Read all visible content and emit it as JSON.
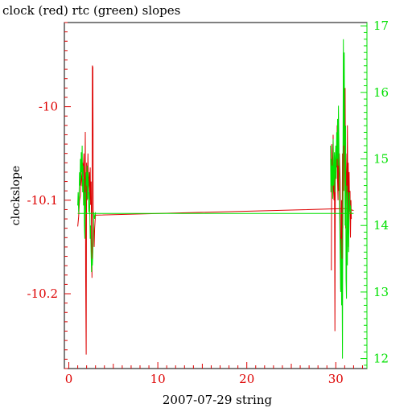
{
  "chart_data": {
    "type": "line",
    "title": "clock (red) rtc (green) slopes",
    "xlabel": "2007-07-29 string",
    "ylabel": "clockslope",
    "xlim": [
      -0.5,
      33.5
    ],
    "y_left": {
      "lim": [
        -10.28,
        -9.91
      ],
      "ticks": [
        -10.2,
        -10.1,
        -10
      ],
      "tick_labels": [
        "-10.2",
        "-10.1",
        "-10"
      ],
      "color": "#dd0000"
    },
    "y_right": {
      "lim": [
        11.85,
        17.05
      ],
      "ticks": [
        12,
        13,
        14,
        15,
        16,
        17
      ],
      "tick_labels": [
        "12",
        "13",
        "14",
        "15",
        "16",
        "17"
      ],
      "color": "#00e000"
    },
    "x_ticks": [
      0,
      10,
      20,
      30
    ],
    "x_tick_labels": [
      "0",
      "10",
      "20",
      "30"
    ],
    "series": [
      {
        "color": "#dd0000",
        "axis": "left",
        "segments": [
          [
            [
              1.0,
              -10.128
            ],
            [
              1.1,
              -10.118
            ],
            [
              1.2,
              -10.1
            ],
            [
              1.3,
              -10.095
            ],
            [
              1.4,
              -10.07
            ],
            [
              1.5,
              -10.085
            ],
            [
              1.55,
              -10.06
            ],
            [
              1.6,
              -10.075
            ],
            [
              1.7,
              -10.05
            ],
            [
              1.75,
              -10.1
            ],
            [
              1.8,
              -10.11
            ],
            [
              1.85,
              -10.027
            ],
            [
              1.9,
              -10.185
            ],
            [
              1.95,
              -10.265
            ],
            [
              2.0,
              -10.06
            ],
            [
              2.05,
              -10.1
            ],
            [
              2.1,
              -10.08
            ],
            [
              2.15,
              -10.05
            ],
            [
              2.2,
              -10.09
            ],
            [
              2.3,
              -10.07
            ],
            [
              2.35,
              -10.1
            ],
            [
              2.4,
              -10.065
            ],
            [
              2.45,
              -10.105
            ],
            [
              2.5,
              -10.08
            ],
            [
              2.55,
              -10.125
            ],
            [
              2.6,
              -10.183
            ],
            [
              2.65,
              -9.956
            ],
            [
              2.7,
              -9.958
            ],
            [
              2.75,
              -10.11
            ],
            [
              2.85,
              -10.15
            ],
            [
              2.9,
              -10.13
            ],
            [
              3.0,
              -10.115
            ]
          ],
          [
            [
              3.0,
              -10.116
            ],
            [
              30.8,
              -10.109
            ],
            [
              31.3,
              -10.109
            ],
            [
              32.0,
              -10.111
            ]
          ],
          [
            [
              29.5,
              -10.175
            ],
            [
              29.55,
              -10.04
            ],
            [
              29.6,
              -10.065
            ],
            [
              29.65,
              -10.08
            ],
            [
              29.7,
              -10.03
            ],
            [
              29.75,
              -10.09
            ],
            [
              29.8,
              -10.1
            ],
            [
              29.85,
              -10.06
            ],
            [
              29.9,
              -10.24
            ],
            [
              29.95,
              -10.08
            ],
            [
              30.0,
              -10.07
            ],
            [
              30.05,
              -10.05
            ],
            [
              30.1,
              -10.065
            ],
            [
              30.15,
              -10.02
            ],
            [
              30.2,
              -10.08
            ],
            [
              30.25,
              -10.1
            ],
            [
              30.3,
              -10.04
            ],
            [
              30.35,
              -10.09
            ],
            [
              30.4,
              -10.05
            ],
            [
              30.5,
              -10.08
            ],
            [
              30.55,
              -10.195
            ],
            [
              30.6,
              -10.17
            ],
            [
              30.65,
              -10.1
            ],
            [
              30.7,
              -10.19
            ],
            [
              30.75,
              -10.05
            ],
            [
              30.8,
              -10.13
            ],
            [
              30.85,
              -10.04
            ],
            [
              30.9,
              -10.09
            ],
            [
              30.95,
              -10.015
            ],
            [
              31.0,
              -10.06
            ],
            [
              31.05,
              -9.98
            ],
            [
              31.1,
              -10.13
            ],
            [
              31.15,
              -10.05
            ],
            [
              31.2,
              -10.08
            ],
            [
              31.25,
              -10.12
            ],
            [
              31.3,
              -10.02
            ],
            [
              31.35,
              -10.1
            ],
            [
              31.4,
              -10.06
            ],
            [
              31.45,
              -10.15
            ],
            [
              31.5,
              -10.07
            ],
            [
              31.55,
              -10.11
            ],
            [
              31.6,
              -10.09
            ],
            [
              31.65,
              -10.14
            ],
            [
              31.7,
              -10.1
            ],
            [
              31.75,
              -10.12
            ]
          ]
        ]
      },
      {
        "color": "#00e000",
        "axis": "right",
        "segments": [
          [
            [
              1.0,
              14.3
            ],
            [
              1.05,
              14.5
            ],
            [
              1.1,
              14.2
            ],
            [
              1.15,
              14.4
            ],
            [
              1.2,
              14.8
            ],
            [
              1.25,
              14.6
            ],
            [
              1.3,
              15.0
            ],
            [
              1.35,
              14.7
            ],
            [
              1.4,
              15.1
            ],
            [
              1.45,
              14.8
            ],
            [
              1.5,
              15.2
            ],
            [
              1.55,
              14.5
            ],
            [
              1.6,
              14.9
            ],
            [
              1.65,
              14.3
            ],
            [
              1.7,
              14.7
            ],
            [
              1.75,
              14.0
            ],
            [
              1.8,
              13.8
            ],
            [
              1.85,
              14.5
            ],
            [
              1.9,
              14.2
            ],
            [
              1.95,
              14.8
            ],
            [
              2.0,
              14.6
            ],
            [
              2.05,
              14.9
            ],
            [
              2.1,
              14.4
            ],
            [
              2.15,
              14.8
            ],
            [
              2.2,
              14.6
            ],
            [
              2.25,
              14.2
            ],
            [
              2.3,
              14.5
            ],
            [
              2.35,
              14.3
            ],
            [
              2.4,
              13.8
            ],
            [
              2.45,
              14.0
            ],
            [
              2.5,
              13.6
            ],
            [
              2.55,
              13.3
            ],
            [
              2.6,
              13.5
            ],
            [
              2.65,
              13.4
            ],
            [
              2.7,
              13.6
            ],
            [
              2.75,
              13.9
            ],
            [
              2.8,
              14.2
            ],
            [
              2.9,
              14.1
            ],
            [
              3.0,
              14.2
            ]
          ],
          [
            [
              1.0,
              14.18
            ],
            [
              32.0,
              14.18
            ]
          ],
          [
            [
              29.4,
              15.2
            ],
            [
              29.45,
              14.5
            ],
            [
              29.5,
              15.0
            ],
            [
              29.55,
              14.6
            ],
            [
              29.6,
              14.9
            ],
            [
              29.65,
              14.4
            ],
            [
              29.7,
              15.3
            ],
            [
              29.75,
              14.6
            ],
            [
              29.8,
              14.8
            ],
            [
              29.85,
              15.1
            ],
            [
              29.9,
              14.5
            ],
            [
              29.95,
              15.0
            ],
            [
              30.0,
              15.2
            ],
            [
              30.05,
              14.7
            ],
            [
              30.1,
              15.4
            ],
            [
              30.15,
              15.0
            ],
            [
              30.2,
              15.6
            ],
            [
              30.25,
              14.9
            ],
            [
              30.3,
              15.8
            ],
            [
              30.35,
              15.2
            ],
            [
              30.4,
              14.5
            ],
            [
              30.45,
              14.0
            ],
            [
              30.5,
              13.5
            ],
            [
              30.55,
              13.0
            ],
            [
              30.6,
              13.8
            ],
            [
              30.65,
              12.8
            ],
            [
              30.7,
              13.5
            ],
            [
              30.75,
              12.0
            ],
            [
              30.8,
              14.5
            ],
            [
              30.85,
              16.8
            ],
            [
              30.9,
              15.2
            ],
            [
              30.95,
              16.6
            ],
            [
              31.0,
              15.0
            ],
            [
              31.05,
              14.0
            ],
            [
              31.1,
              15.5
            ],
            [
              31.15,
              13.2
            ],
            [
              31.2,
              12.9
            ],
            [
              31.25,
              14.6
            ],
            [
              31.3,
              13.4
            ],
            [
              31.35,
              14.5
            ],
            [
              31.4,
              14.0
            ],
            [
              31.45,
              13.6
            ],
            [
              31.5,
              14.2
            ],
            [
              31.55,
              14.5
            ],
            [
              31.6,
              14.2
            ],
            [
              31.65,
              14.3
            ],
            [
              31.7,
              14.2
            ]
          ]
        ]
      }
    ]
  }
}
